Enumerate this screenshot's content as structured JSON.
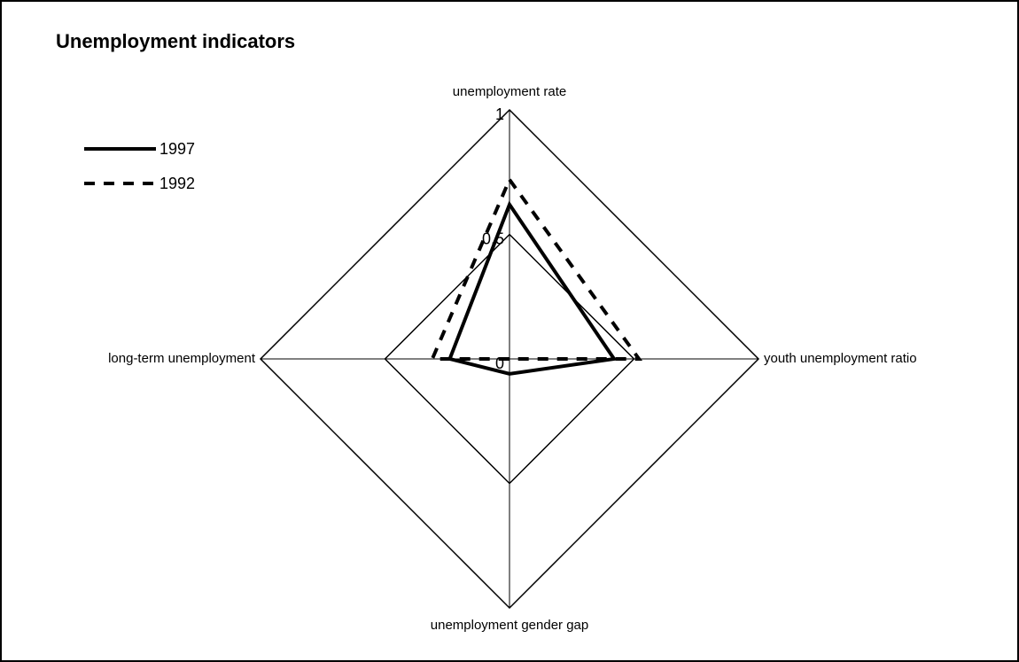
{
  "chart_data": {
    "type": "radar",
    "title": "Unemployment indicators",
    "categories": [
      "unemployment rate",
      "youth unemployment ratio",
      "unemployment gender gap",
      "long-term unemployment"
    ],
    "series": [
      {
        "name": "1997",
        "color": "#000000",
        "line_style": "solid",
        "values": [
          0.62,
          0.42,
          0.06,
          0.24
        ]
      },
      {
        "name": "1992",
        "color": "#000000",
        "line_style": "dashed",
        "values": [
          0.72,
          0.52,
          0,
          0.31
        ]
      }
    ],
    "rlim": [
      0,
      1
    ],
    "rticks": [
      0,
      {
        "value": 0.5,
        "label": "0,5"
      },
      1
    ],
    "grid": true,
    "legend": "top-left"
  }
}
